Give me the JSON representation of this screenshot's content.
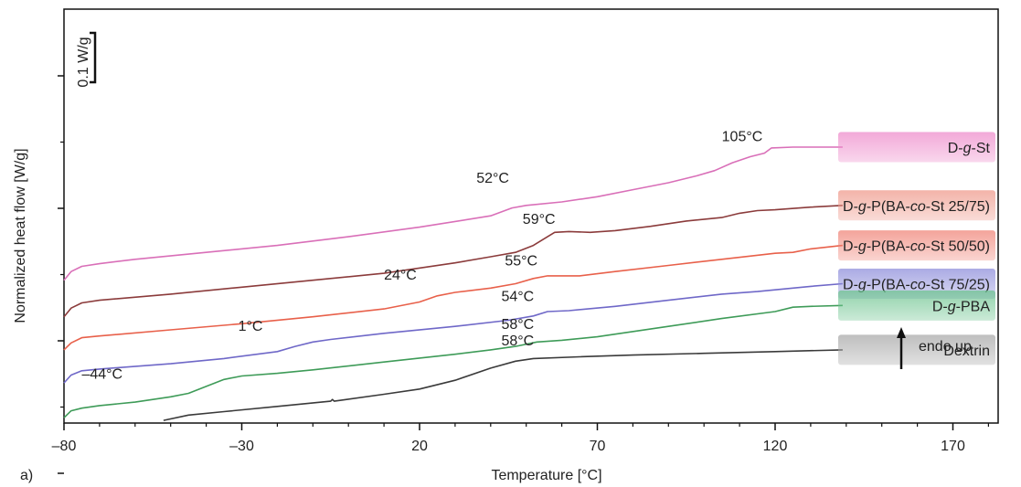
{
  "panel_label": "a)",
  "chart_data": {
    "type": "line",
    "title": "",
    "xlabel": "Temperature [°C]",
    "ylabel": "Normalized heat flow [W/g]",
    "xlim": [
      -80,
      190
    ],
    "xticks": [
      -80,
      -30,
      20,
      70,
      120,
      170
    ],
    "xtick_labels": [
      "–80",
      "–30",
      "20",
      "70",
      "120",
      "170"
    ],
    "y_tick_count": 4,
    "grid": false,
    "scale_bar": {
      "label": "0.1 W/g",
      "value": 0.1
    },
    "endo_label": "endo up",
    "series": [
      {
        "name": "D-g-St",
        "label_parts": [
          [
            "D-",
            false
          ],
          [
            "g",
            true
          ],
          [
            "-St",
            false
          ]
        ],
        "color": "#d96fb8",
        "legend_color": "#ee8ccb",
        "annotations": [
          {
            "x": 36,
            "y": -1.05,
            "text": "52°C"
          },
          {
            "x": 105,
            "y": -0.81,
            "text": "105°C"
          }
        ],
        "points": [
          [
            -80,
            -1.61
          ],
          [
            -78,
            -1.56
          ],
          [
            -75,
            -1.53
          ],
          [
            -70,
            -1.515
          ],
          [
            -60,
            -1.49
          ],
          [
            -40,
            -1.45
          ],
          [
            -20,
            -1.41
          ],
          [
            0,
            -1.36
          ],
          [
            20,
            -1.305
          ],
          [
            40,
            -1.24
          ],
          [
            46,
            -1.195
          ],
          [
            50,
            -1.18
          ],
          [
            60,
            -1.16
          ],
          [
            70,
            -1.13
          ],
          [
            80,
            -1.09
          ],
          [
            90,
            -1.05
          ],
          [
            98,
            -1.01
          ],
          [
            103,
            -0.98
          ],
          [
            108,
            -0.935
          ],
          [
            113,
            -0.9
          ],
          [
            117,
            -0.88
          ],
          [
            119,
            -0.85
          ],
          [
            125,
            -0.845
          ],
          [
            130,
            -0.845
          ],
          [
            139,
            -0.845
          ]
        ]
      },
      {
        "name": "D-g-P(BA-co-St 25/75)",
        "label_parts": [
          [
            "D-",
            false
          ],
          [
            "g",
            true
          ],
          [
            "-P(BA-",
            false
          ],
          [
            "co",
            true
          ],
          [
            "-St 25/75)",
            false
          ]
        ],
        "color": "#8b3b3b",
        "legend_color": "#ef9a8c",
        "annotations": [
          {
            "x": 49,
            "y": -1.285,
            "text": "59°C"
          }
        ],
        "points": [
          [
            -80,
            -1.82
          ],
          [
            -78,
            -1.77
          ],
          [
            -75,
            -1.74
          ],
          [
            -70,
            -1.725
          ],
          [
            -50,
            -1.69
          ],
          [
            -30,
            -1.65
          ],
          [
            -10,
            -1.61
          ],
          [
            10,
            -1.57
          ],
          [
            30,
            -1.51
          ],
          [
            40,
            -1.475
          ],
          [
            47,
            -1.45
          ],
          [
            52,
            -1.41
          ],
          [
            56,
            -1.36
          ],
          [
            58,
            -1.335
          ],
          [
            62,
            -1.33
          ],
          [
            68,
            -1.335
          ],
          [
            75,
            -1.325
          ],
          [
            85,
            -1.3
          ],
          [
            95,
            -1.27
          ],
          [
            105,
            -1.25
          ],
          [
            110,
            -1.225
          ],
          [
            115,
            -1.21
          ],
          [
            120,
            -1.205
          ],
          [
            130,
            -1.19
          ],
          [
            139,
            -1.18
          ]
        ]
      },
      {
        "name": "D-g-P(BA-co-St 50/50)",
        "label_parts": [
          [
            "D-",
            false
          ],
          [
            "g",
            true
          ],
          [
            "-P(BA-",
            false
          ],
          [
            "co",
            true
          ],
          [
            "-St 50/50)",
            false
          ]
        ],
        "color": "#e8604a",
        "legend_color": "#f08579",
        "annotations": [
          {
            "x": 10,
            "y": -1.605,
            "text": "24°C"
          },
          {
            "x": 44,
            "y": -1.525,
            "text": "55°C"
          }
        ],
        "points": [
          [
            -80,
            -2.01
          ],
          [
            -78,
            -1.97
          ],
          [
            -75,
            -1.94
          ],
          [
            -70,
            -1.93
          ],
          [
            -50,
            -1.895
          ],
          [
            -30,
            -1.86
          ],
          [
            -10,
            -1.82
          ],
          [
            10,
            -1.775
          ],
          [
            20,
            -1.735
          ],
          [
            25,
            -1.7
          ],
          [
            30,
            -1.68
          ],
          [
            40,
            -1.655
          ],
          [
            47,
            -1.63
          ],
          [
            52,
            -1.6
          ],
          [
            56,
            -1.585
          ],
          [
            65,
            -1.585
          ],
          [
            75,
            -1.56
          ],
          [
            90,
            -1.525
          ],
          [
            105,
            -1.49
          ],
          [
            120,
            -1.455
          ],
          [
            125,
            -1.45
          ],
          [
            130,
            -1.43
          ],
          [
            139,
            -1.41
          ]
        ]
      },
      {
        "name": "D-g-P(BA-co-St 75/25)",
        "label_parts": [
          [
            "D-",
            false
          ],
          [
            "g",
            true
          ],
          [
            "-P(BA-",
            false
          ],
          [
            "co",
            true
          ],
          [
            "-St 75/25)",
            false
          ]
        ],
        "color": "#6f68c8",
        "legend_color": "#8f8fdb",
        "annotations": [
          {
            "x": -31,
            "y": -1.9,
            "text": "1°C"
          },
          {
            "x": 43,
            "y": -1.73,
            "text": "54°C"
          }
        ],
        "points": [
          [
            -80,
            -2.2
          ],
          [
            -78,
            -2.155
          ],
          [
            -75,
            -2.13
          ],
          [
            -70,
            -2.12
          ],
          [
            -50,
            -2.09
          ],
          [
            -35,
            -2.06
          ],
          [
            -20,
            -2.02
          ],
          [
            -15,
            -1.99
          ],
          [
            -10,
            -1.965
          ],
          [
            -5,
            -1.95
          ],
          [
            10,
            -1.915
          ],
          [
            30,
            -1.875
          ],
          [
            45,
            -1.84
          ],
          [
            52,
            -1.815
          ],
          [
            56,
            -1.79
          ],
          [
            62,
            -1.785
          ],
          [
            75,
            -1.76
          ],
          [
            90,
            -1.725
          ],
          [
            105,
            -1.69
          ],
          [
            115,
            -1.675
          ],
          [
            120,
            -1.665
          ],
          [
            130,
            -1.645
          ],
          [
            139,
            -1.63
          ]
        ]
      },
      {
        "name": "D-g-PBA",
        "label_parts": [
          [
            "D-",
            false
          ],
          [
            "g",
            true
          ],
          [
            "-PBA",
            false
          ]
        ],
        "color": "#3e9b58",
        "legend_color": "#6cc38e",
        "annotations": [
          {
            "x": -75,
            "y": -2.175,
            "text": "–44°C"
          },
          {
            "x": 43,
            "y": -1.89,
            "text": "58°C"
          }
        ],
        "points": [
          [
            -80,
            -2.4
          ],
          [
            -78,
            -2.36
          ],
          [
            -75,
            -2.345
          ],
          [
            -70,
            -2.33
          ],
          [
            -60,
            -2.31
          ],
          [
            -50,
            -2.28
          ],
          [
            -45,
            -2.26
          ],
          [
            -40,
            -2.22
          ],
          [
            -35,
            -2.18
          ],
          [
            -30,
            -2.16
          ],
          [
            -20,
            -2.145
          ],
          [
            -10,
            -2.125
          ],
          [
            10,
            -2.08
          ],
          [
            30,
            -2.035
          ],
          [
            40,
            -2.01
          ],
          [
            47,
            -1.99
          ],
          [
            53,
            -1.965
          ],
          [
            60,
            -1.955
          ],
          [
            70,
            -1.935
          ],
          [
            90,
            -1.875
          ],
          [
            105,
            -1.83
          ],
          [
            120,
            -1.79
          ],
          [
            125,
            -1.765
          ],
          [
            130,
            -1.76
          ],
          [
            139,
            -1.755
          ]
        ]
      },
      {
        "name": "Dextrin",
        "label_parts": [
          [
            "Dextrin",
            false
          ]
        ],
        "color": "#3a3a3a",
        "legend_color": "#a9a9a9",
        "annotations": [
          {
            "x": 43,
            "y": -1.985,
            "text": "58°C"
          }
        ],
        "points": [
          [
            -52,
            -2.415
          ],
          [
            -45,
            -2.385
          ],
          [
            -35,
            -2.365
          ],
          [
            -20,
            -2.335
          ],
          [
            -5,
            -2.305
          ],
          [
            -4.5,
            -2.295
          ],
          [
            -4,
            -2.305
          ],
          [
            10,
            -2.265
          ],
          [
            20,
            -2.235
          ],
          [
            30,
            -2.185
          ],
          [
            40,
            -2.115
          ],
          [
            47,
            -2.075
          ],
          [
            52,
            -2.06
          ],
          [
            65,
            -2.05
          ],
          [
            80,
            -2.04
          ],
          [
            100,
            -2.03
          ],
          [
            120,
            -2.02
          ],
          [
            139,
            -2.01
          ]
        ]
      }
    ]
  }
}
